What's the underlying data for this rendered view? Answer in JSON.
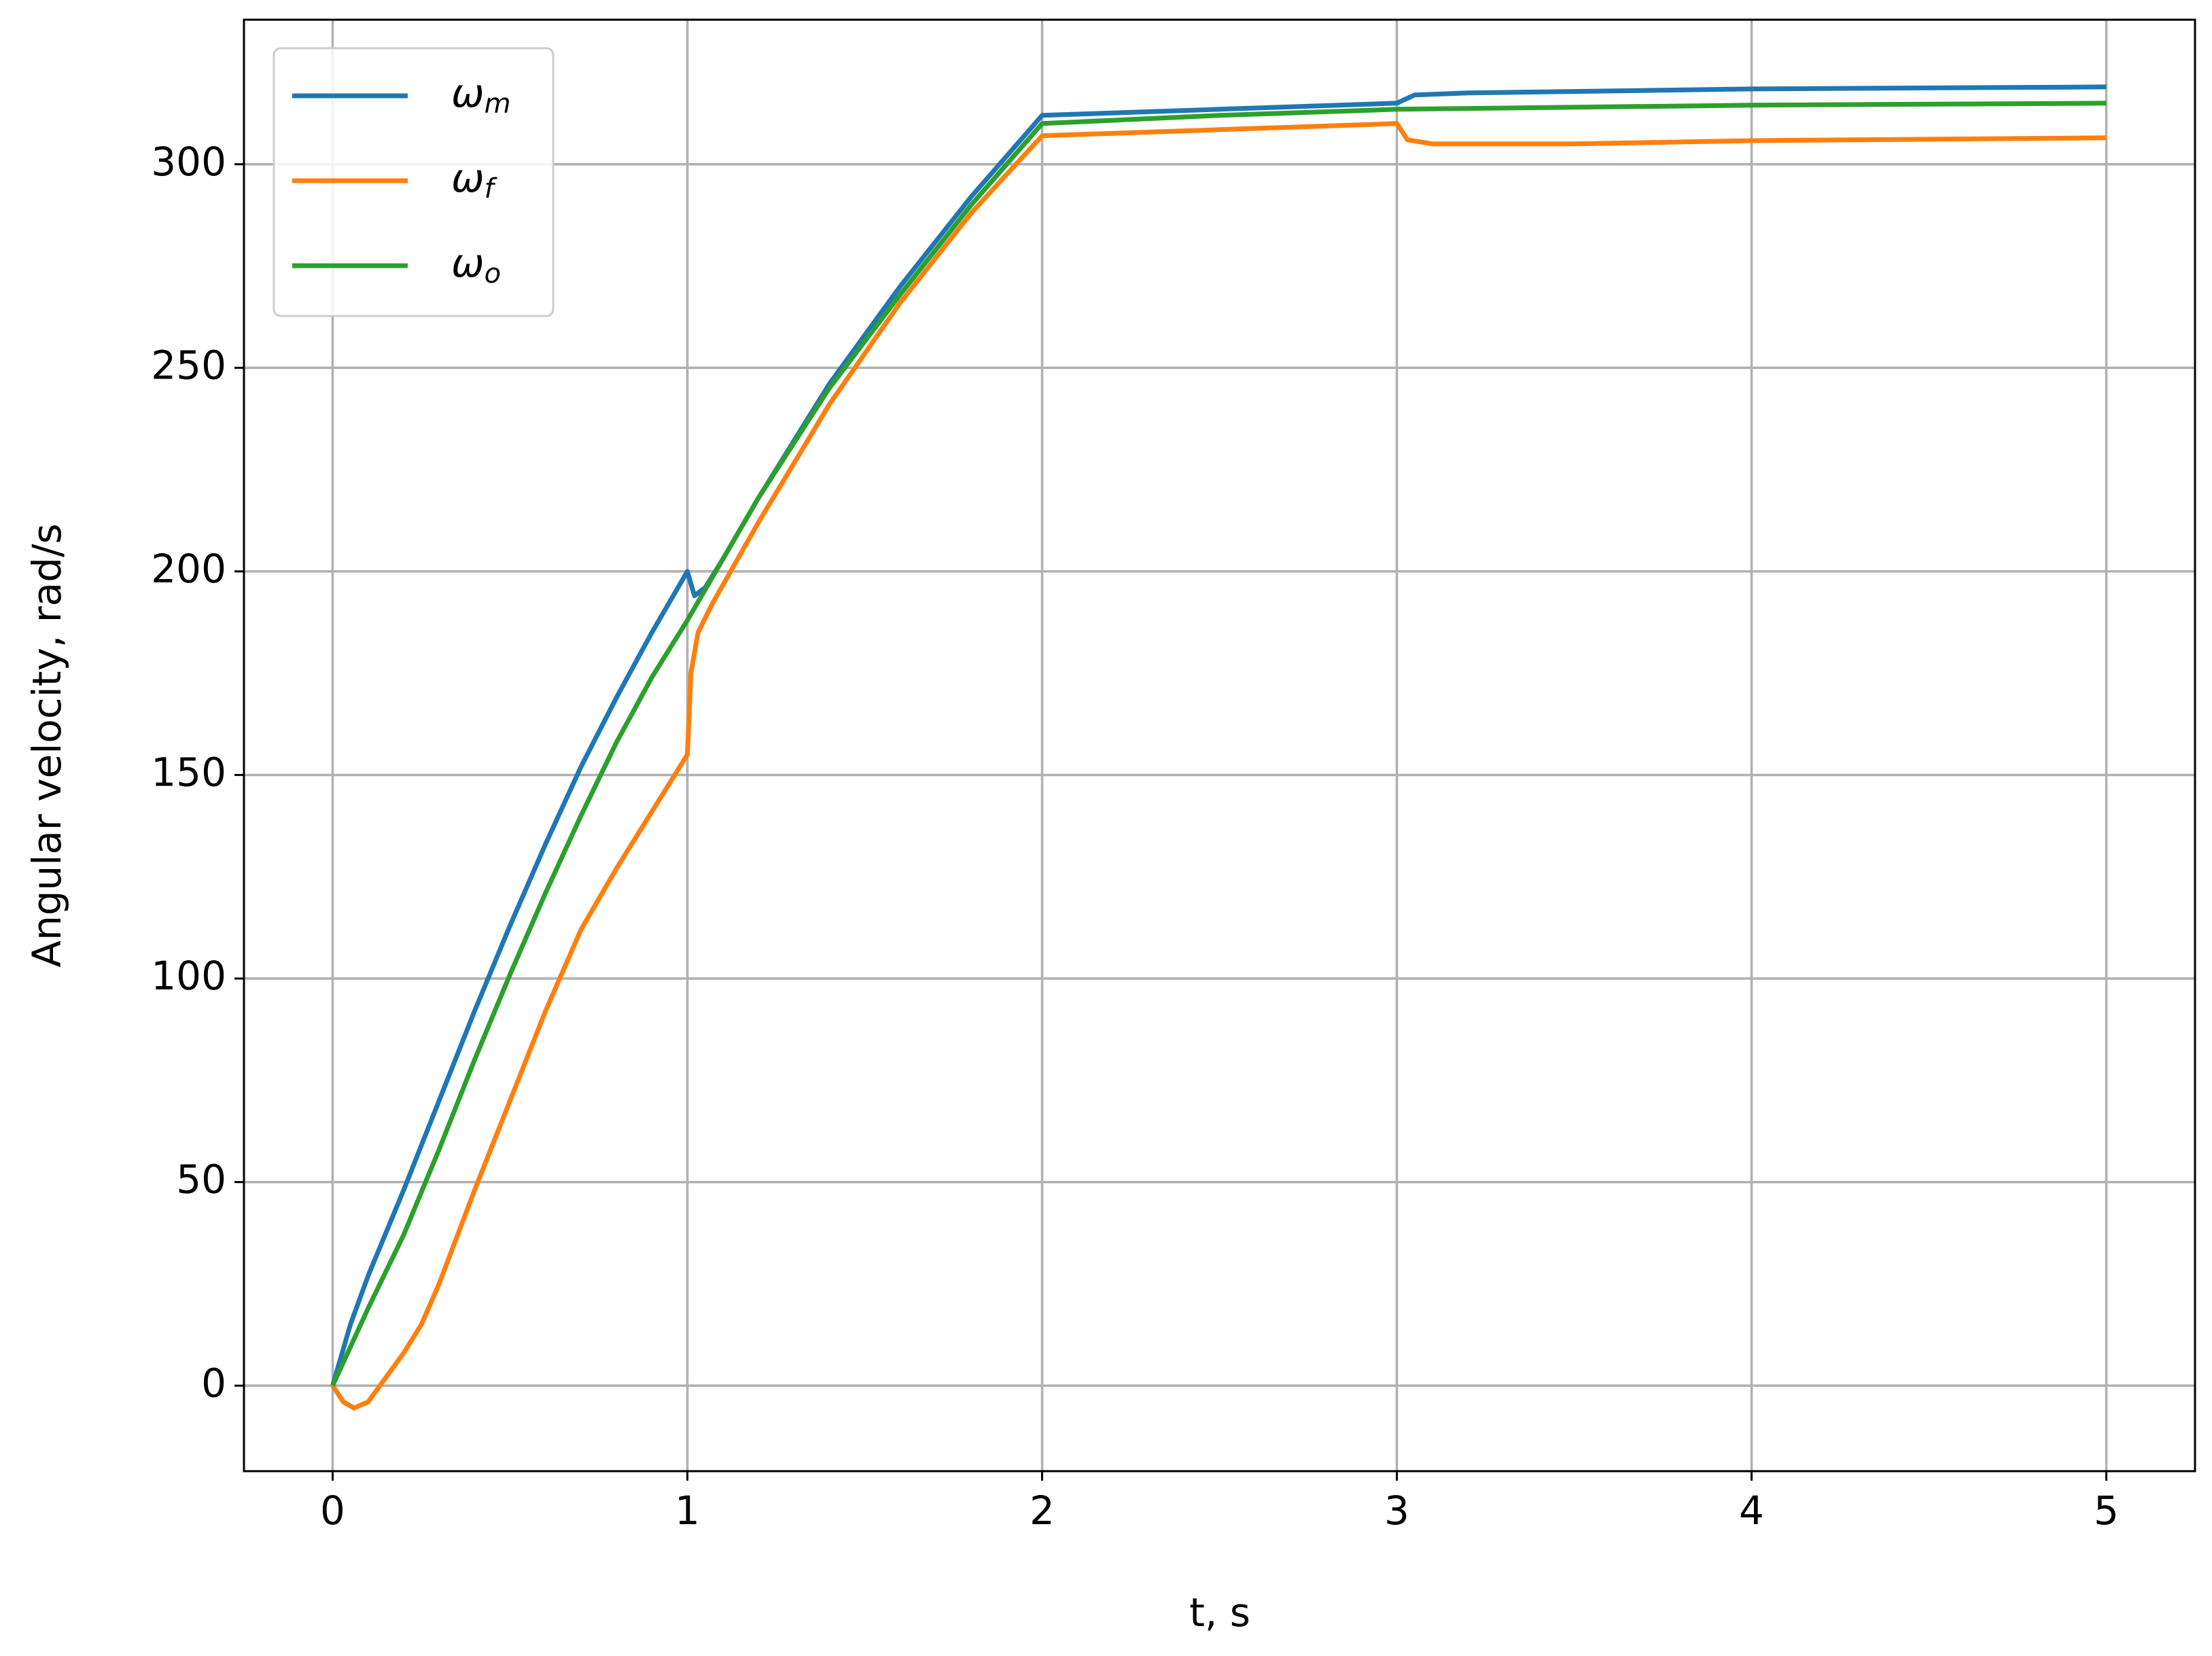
{
  "chart_data": {
    "type": "line",
    "xlabel": "t, s",
    "ylabel": "Angular velocity, rad/s",
    "xlim": [
      -0.25,
      5.25
    ],
    "ylim": [
      -21,
      335.5
    ],
    "xticks": [
      0,
      1,
      2,
      3,
      4,
      5
    ],
    "yticks": [
      0,
      50,
      100,
      150,
      200,
      250,
      300
    ],
    "grid": true,
    "legend": "upper left",
    "series": [
      {
        "name": "ωm",
        "color": "#1f77b4",
        "x": [
          0,
          0.05,
          0.1,
          0.2,
          0.3,
          0.4,
          0.5,
          0.6,
          0.7,
          0.8,
          0.9,
          1.0,
          1.02,
          1.05,
          1.1,
          1.2,
          1.4,
          1.6,
          1.8,
          2.0,
          2.5,
          3.0,
          3.05,
          3.2,
          4,
          5
        ],
        "values": [
          0,
          15,
          27,
          48,
          70,
          92,
          113,
          133,
          152,
          169,
          185,
          200,
          194,
          196,
          203,
          218,
          246,
          270,
          292,
          312,
          313.5,
          315,
          317,
          317.5,
          318.5,
          319
        ]
      },
      {
        "name": "ωf",
        "color": "#ff7f0e",
        "x": [
          0,
          0.03,
          0.06,
          0.1,
          0.15,
          0.2,
          0.25,
          0.3,
          0.4,
          0.5,
          0.6,
          0.7,
          0.8,
          0.9,
          1.0,
          1.01,
          1.03,
          1.07,
          1.2,
          1.4,
          1.6,
          1.8,
          2.0,
          2.5,
          3.0,
          3.03,
          3.1,
          3.5,
          4,
          5
        ],
        "values": [
          0,
          -4,
          -5.5,
          -4,
          2,
          8,
          15,
          25,
          48,
          70,
          92,
          112,
          127,
          141,
          155,
          175,
          185,
          192,
          212,
          241,
          266,
          288,
          307,
          308.5,
          310,
          306,
          305,
          305,
          305.8,
          306.5
        ]
      },
      {
        "name": "ωo",
        "color": "#2ca02c",
        "x": [
          0,
          0.1,
          0.2,
          0.3,
          0.4,
          0.5,
          0.6,
          0.7,
          0.8,
          0.9,
          1.0,
          1.1,
          1.2,
          1.4,
          1.6,
          1.8,
          2.0,
          2.5,
          3.0,
          4,
          5
        ],
        "values": [
          0,
          19,
          37,
          58,
          80,
          101,
          121,
          140,
          158,
          174,
          188,
          203,
          218,
          245,
          268,
          290,
          310,
          312,
          313.5,
          314.5,
          315
        ]
      }
    ]
  }
}
